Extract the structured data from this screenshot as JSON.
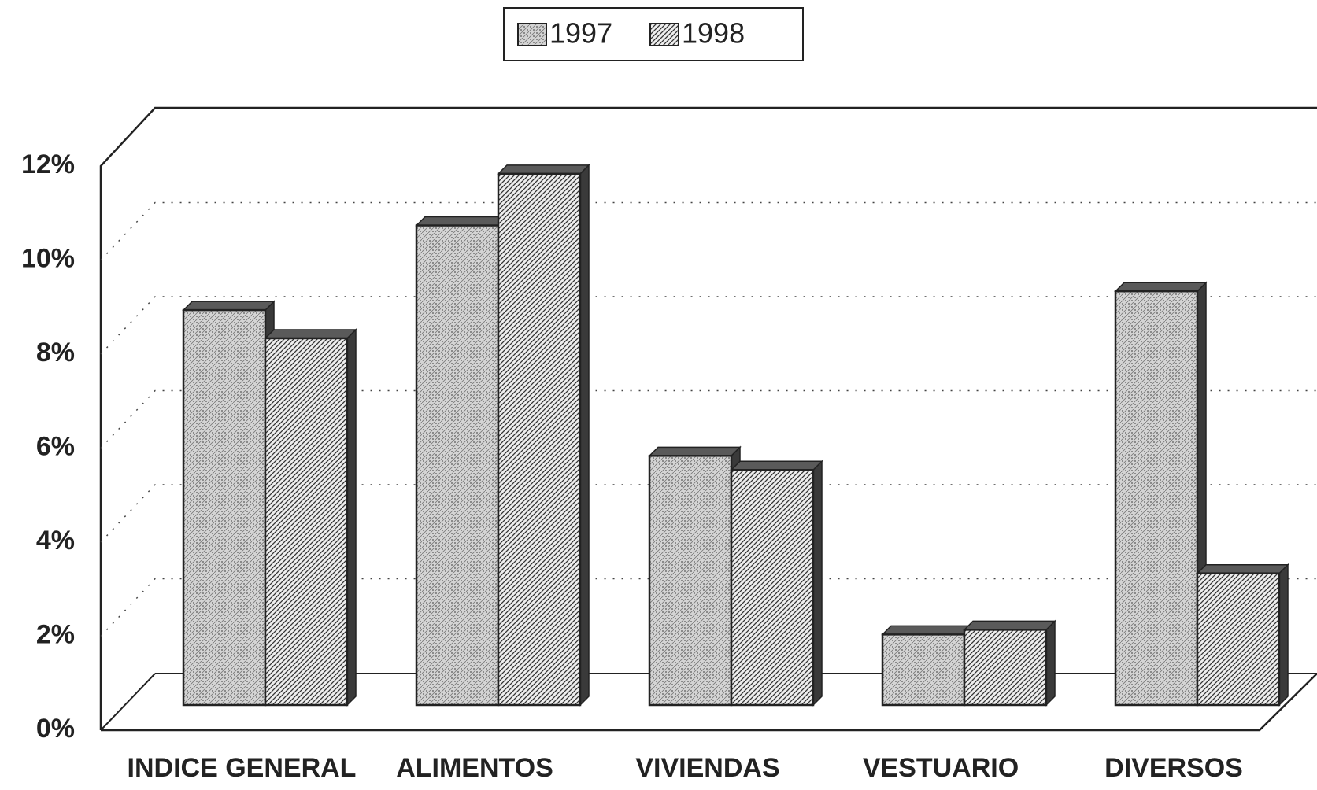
{
  "chart_data": {
    "type": "bar3d",
    "categories": [
      "INDICE GENERAL",
      "ALIMENTOS",
      "VIVIENDAS",
      "VESTUARIO",
      "DIVERSOS"
    ],
    "series": [
      {
        "name": "1997",
        "color": "#d4d4d4",
        "values": [
          8.4,
          10.2,
          5.3,
          1.5,
          8.8
        ]
      },
      {
        "name": "1998",
        "color": "#e6e6e6",
        "values": [
          7.8,
          11.3,
          5.0,
          1.6,
          2.8
        ]
      }
    ],
    "ylim": [
      0,
      12
    ],
    "yticks": [
      {
        "value": 0,
        "label": "0%"
      },
      {
        "value": 2,
        "label": "2%"
      },
      {
        "value": 4,
        "label": "4%"
      },
      {
        "value": 6,
        "label": "6%"
      },
      {
        "value": 8,
        "label": "8%"
      },
      {
        "value": 10,
        "label": "10%"
      },
      {
        "value": 12,
        "label": "12%"
      }
    ],
    "grid": true,
    "legend": "top"
  }
}
